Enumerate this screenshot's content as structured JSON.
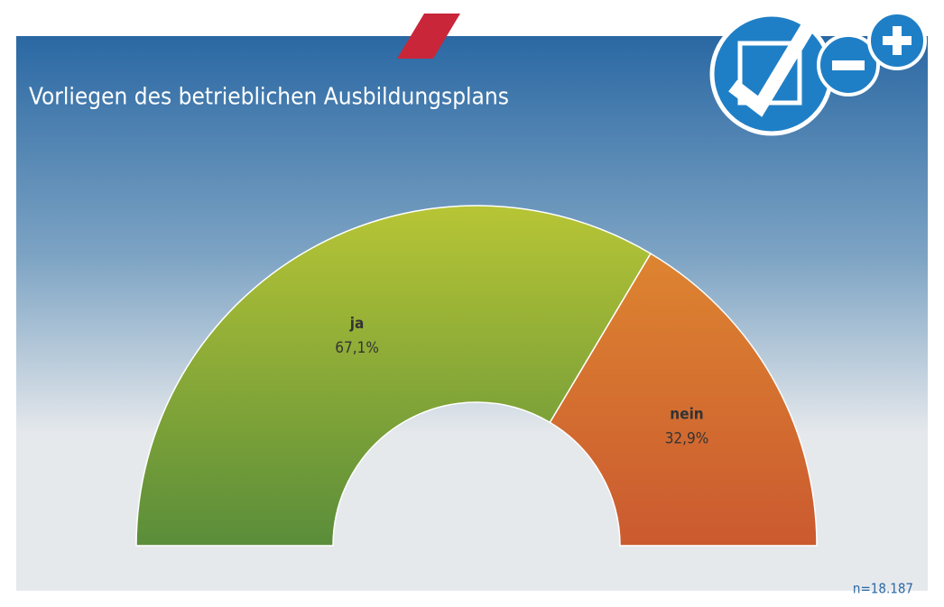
{
  "chart_data": {
    "type": "half-donut",
    "title": "Vorliegen des betrieblichen Ausbildungsplans",
    "categories": [
      "ja",
      "nein"
    ],
    "values": [
      67.1,
      32.9
    ],
    "value_labels": [
      "67,1%",
      "32,9%"
    ],
    "colors": [
      [
        "#b7c535",
        "#5a8d3a"
      ],
      [
        "#e08b30",
        "#cb5a30"
      ]
    ],
    "annotation": "n=18.187"
  }
}
